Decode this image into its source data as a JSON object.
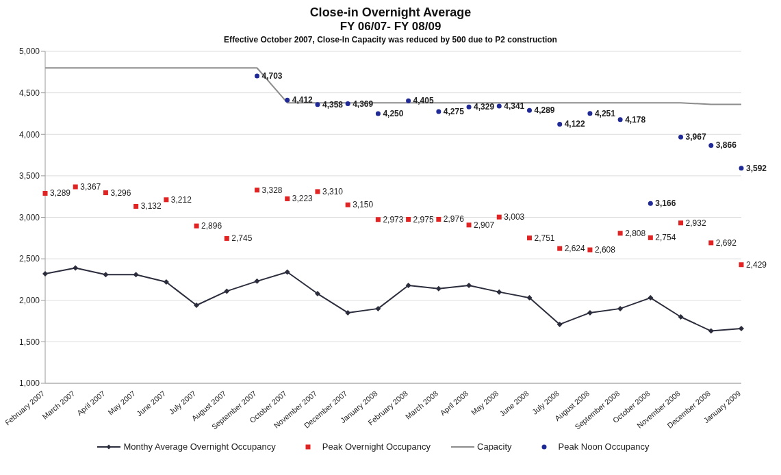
{
  "chart_data": {
    "type": "line",
    "title": "Close-in Overnight Average",
    "subtitle": "FY 06/07- FY 08/09",
    "annotations": [
      "Effective October 2007, Close-In Capacity was reduced by 500 due to P2 construction"
    ],
    "categories": [
      "February 2007",
      "March 2007",
      "April 2007",
      "May 2007",
      "June 2007",
      "July 2007",
      "August 2007",
      "September 2007",
      "October 2007",
      "November 2007",
      "December 2007",
      "January 2008",
      "February 2008",
      "March 2008",
      "April 2008",
      "May 2008",
      "June 2008",
      "July 2008",
      "August 2008",
      "September 2008",
      "October 2008",
      "November 2008",
      "December 2008",
      "January 2009"
    ],
    "series": [
      {
        "name": "Monthy Average Overnight Occupancy",
        "marker": "diamond",
        "color": "#2b2d3c",
        "values": [
          2320,
          2390,
          2310,
          2310,
          2220,
          1940,
          2110,
          2230,
          2340,
          2080,
          1850,
          1900,
          2180,
          2140,
          2180,
          2100,
          2030,
          1710,
          1850,
          1900,
          2030,
          1800,
          1630,
          1660
        ]
      },
      {
        "name": "Peak Overnight Occupancy",
        "type": "scatter",
        "marker": "square",
        "color": "#e02424",
        "values": [
          3289,
          3367,
          3296,
          3132,
          3212,
          2896,
          2745,
          3328,
          3223,
          3310,
          3150,
          2973,
          2975,
          2976,
          2907,
          3003,
          2751,
          2624,
          2608,
          2808,
          2754,
          2932,
          2692,
          2429
        ],
        "value_labels": [
          "3,289",
          "3,367",
          "3,296",
          "3,132",
          "3,212",
          "2,896",
          "2,745",
          "3,328",
          "3,223",
          "3,310",
          "3,150",
          "2,973",
          "2,975",
          "2,976",
          "2,907",
          "3,003",
          "2,751",
          "2,624",
          "2,608",
          "2,808",
          "2,754",
          "2,932",
          "2,692",
          "2,429"
        ]
      },
      {
        "name": "Capacity",
        "marker": "none",
        "color": "#8c8c8c",
        "values": [
          4800,
          4800,
          4800,
          4800,
          4800,
          4800,
          4800,
          4800,
          4380,
          4380,
          4380,
          4380,
          4380,
          4380,
          4380,
          4380,
          4380,
          4380,
          4380,
          4380,
          4380,
          4380,
          4360,
          4360
        ]
      },
      {
        "name": "Peak Noon Occupancy",
        "type": "scatter",
        "marker": "circle",
        "color": "#1f2a96",
        "values": [
          null,
          null,
          null,
          null,
          null,
          null,
          null,
          4703,
          4412,
          4358,
          4369,
          4250,
          4405,
          4275,
          4329,
          4341,
          4289,
          4122,
          4251,
          4178,
          3166,
          3967,
          3866,
          3592
        ],
        "value_labels": [
          null,
          null,
          null,
          null,
          null,
          null,
          null,
          "4,703",
          "4,412",
          "4,358",
          "4,369",
          "4,250",
          "4,405",
          "4,275",
          "4,329",
          "4,341",
          "4,289",
          "4,122",
          "4,251",
          "4,178",
          "3,166",
          "3,967",
          "3,866",
          "3,592"
        ]
      }
    ],
    "ylim": [
      1000,
      5000
    ],
    "yticks": [
      {
        "value": 1000,
        "label": "1,000"
      },
      {
        "value": 1500,
        "label": "1,500"
      },
      {
        "value": 2000,
        "label": "2,000"
      },
      {
        "value": 2500,
        "label": "2,500"
      },
      {
        "value": 3000,
        "label": "3,000"
      },
      {
        "value": 3500,
        "label": "3,500"
      },
      {
        "value": 4000,
        "label": "4,000"
      },
      {
        "value": 4500,
        "label": "4,500"
      },
      {
        "value": 5000,
        "label": "5,000"
      }
    ],
    "grid": "y",
    "legend": "bottom"
  }
}
